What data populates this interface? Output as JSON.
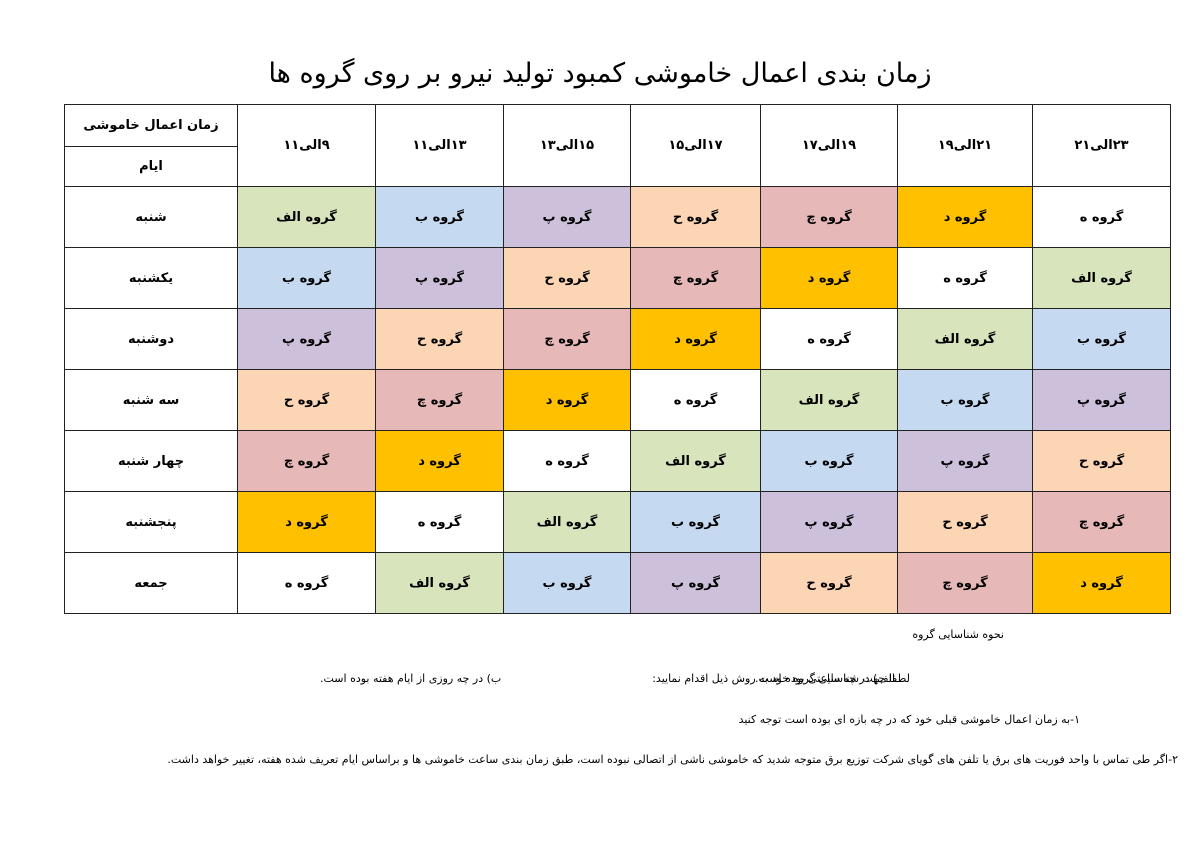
{
  "title": "زمان بندی اعمال خاموشی کمبود تولید نیرو  بر روی گروه ها",
  "table": {
    "corner_top": "زمان اعمال خاموشی",
    "corner_bottom": "ایام",
    "time_slots": [
      "۲۳الی۲۱",
      "۲۱الی۱۹",
      "۱۹الی۱۷",
      "۱۷الی۱۵",
      "۱۵الی۱۳",
      "۱۳الی۱۱",
      "۹الی۱۱"
    ],
    "rows": [
      {
        "day": "شنبه",
        "cells": [
          "گروه ه",
          "گروه د",
          "گروه چ",
          "گروه ح",
          "گروه پ",
          "گروه ب",
          "گروه الف"
        ]
      },
      {
        "day": "یکشنبه",
        "cells": [
          "گروه الف",
          "گروه ه",
          "گروه د",
          "گروه چ",
          "گروه ح",
          "گروه پ",
          "گروه ب"
        ]
      },
      {
        "day": "دوشنبه",
        "cells": [
          "گروه ب",
          "گروه الف",
          "گروه ه",
          "گروه د",
          "گروه چ",
          "گروه ح",
          "گروه پ"
        ]
      },
      {
        "day": "سه شنبه",
        "cells": [
          "گروه پ",
          "گروه ب",
          "گروه الف",
          "گروه ه",
          "گروه د",
          "گروه چ",
          "گروه ح"
        ]
      },
      {
        "day": "چهار شنبه",
        "cells": [
          "گروه ح",
          "گروه پ",
          "گروه ب",
          "گروه الف",
          "گروه ه",
          "گروه د",
          "گروه چ"
        ]
      },
      {
        "day": "پنجشنبه",
        "cells": [
          "گروه چ",
          "گروه ح",
          "گروه پ",
          "گروه ب",
          "گروه الف",
          "گروه ه",
          "گروه د"
        ]
      },
      {
        "day": "جمعه",
        "cells": [
          "گروه د",
          "گروه چ",
          "گروه ح",
          "گروه پ",
          "گروه ب",
          "گروه الف",
          "گروه ه"
        ]
      }
    ]
  },
  "group_colors": {
    "گروه الف": "#d8e4bc",
    "گروه ب": "#c5d9f1",
    "گروه پ": "#ccc0da",
    "گروه ح": "#fcd5b4",
    "گروه چ": "#e6b8b7",
    "گروه د": "#ffc000",
    "گروه ه": "#ffffff"
  },
  "notes": {
    "heading": "نحوه شناسایی گروه",
    "instruction": "لطفا جهت شناسایی گروه خود به روش ذیل اقدام نمایید:",
    "option_a": "الف) در چه ساعتی بوده است.",
    "option_b": "ب) در چه روزی از ایام هفته بوده است.",
    "item_1": "۱-به زمان اعمال خاموشی قبلی خود که در چه بازه ای بوده است توجه کنید",
    "item_2": "۲-اگر طی تماس با واحد فوریت های برق یا تلفن های گویای شرکت توزیع برق متوجه شدید که خاموشی ناشی از اتصالی نبوده است، طبق زمان بندی ساعت خاموشی ها و براساس ایام تعریف شده هفته، تغییر خواهد داشت."
  }
}
